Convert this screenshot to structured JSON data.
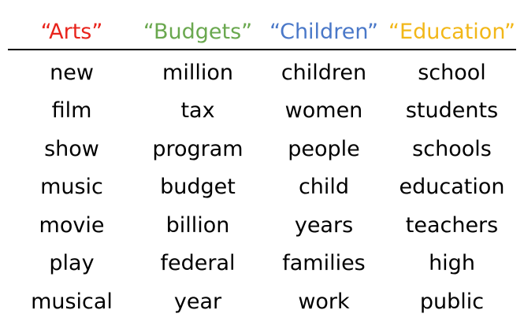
{
  "headers": [
    {
      "label": "“Arts”",
      "color": "#e8241c"
    },
    {
      "label": "“Budgets”",
      "color": "#6aa84f"
    },
    {
      "label": "“Children”",
      "color": "#4a78c8"
    },
    {
      "label": "“Education”",
      "color": "#f2b718"
    }
  ],
  "rows": [
    [
      "new",
      "million",
      "children",
      "school"
    ],
    [
      "film",
      "tax",
      "women",
      "students"
    ],
    [
      "show",
      "program",
      "people",
      "schools"
    ],
    [
      "music",
      "budget",
      "child",
      "education"
    ],
    [
      "movie",
      "billion",
      "years",
      "teachers"
    ],
    [
      "play",
      "federal",
      "families",
      "high"
    ],
    [
      "musical",
      "year",
      "work",
      "public"
    ]
  ]
}
